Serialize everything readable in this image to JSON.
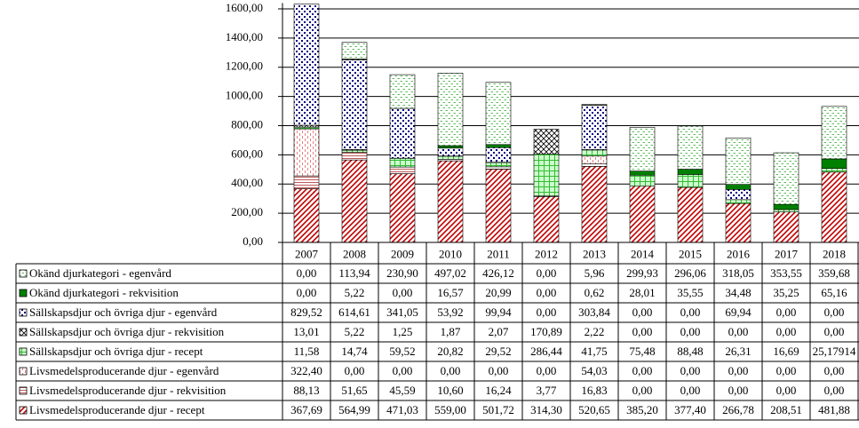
{
  "chart_data": {
    "type": "stacked-bar",
    "categories": [
      "2007",
      "2008",
      "2009",
      "2010",
      "2011",
      "2012",
      "2013",
      "2014",
      "2015",
      "2016",
      "2017",
      "2018"
    ],
    "ylim": [
      0,
      1640
    ],
    "yticks": [
      {
        "value": 0,
        "label": "0,00"
      },
      {
        "value": 200,
        "label": "200,00"
      },
      {
        "value": 400,
        "label": "400,00"
      },
      {
        "value": 600,
        "label": "600,00"
      },
      {
        "value": 800,
        "label": "800,00"
      },
      {
        "value": 1000,
        "label": "1000,00"
      },
      {
        "value": 1200,
        "label": "1200,00"
      },
      {
        "value": 1400,
        "label": "1400,00"
      },
      {
        "value": 1600,
        "label": "1600,00"
      }
    ],
    "grid": true,
    "series": [
      {
        "name": "Okänd djurkategori - egenvård",
        "color": "#33aa33",
        "pattern": "dashes",
        "values": [
          0,
          113.94,
          230.9,
          497.02,
          426.12,
          0,
          5.96,
          299.93,
          296.06,
          318.05,
          353.55,
          359.68
        ],
        "value_labels": [
          "0,00",
          "113,94",
          "230,90",
          "497,02",
          "426,12",
          "0,00",
          "5,96",
          "299,93",
          "296,06",
          "318,05",
          "353,55",
          "359,68"
        ]
      },
      {
        "name": "Okänd djurkategori - rekvisition",
        "color": "#008000",
        "pattern": "solid",
        "values": [
          0,
          5.22,
          0,
          16.57,
          20.99,
          0,
          0.62,
          28.01,
          35.55,
          34.48,
          35.25,
          65.16
        ],
        "value_labels": [
          "0,00",
          "5,22",
          "0,00",
          "16,57",
          "20,99",
          "0,00",
          "0,62",
          "28,01",
          "35,55",
          "34,48",
          "35,25",
          "65,16"
        ]
      },
      {
        "name": "Sällskapsdjur och övriga djur - egenvård",
        "color": "#000080",
        "pattern": "dots",
        "values": [
          829.52,
          614.61,
          341.05,
          53.92,
          99.94,
          0,
          303.84,
          0,
          0,
          69.94,
          0,
          0
        ],
        "value_labels": [
          "829,52",
          "614,61",
          "341,05",
          "53,92",
          "99,94",
          "0,00",
          "303,84",
          "0,00",
          "0,00",
          "69,94",
          "0,00",
          "0,00"
        ]
      },
      {
        "name": "Sällskapsdjur och övriga djur - rekvisition",
        "color": "#000000",
        "pattern": "cross",
        "values": [
          13.01,
          5.22,
          1.25,
          1.87,
          2.07,
          170.89,
          2.22,
          0,
          0,
          0,
          0,
          0
        ],
        "value_labels": [
          "13,01",
          "5,22",
          "1,25",
          "1,87",
          "2,07",
          "170,89",
          "2,22",
          "0,00",
          "0,00",
          "0,00",
          "0,00",
          "0,00"
        ]
      },
      {
        "name": "Sällskapsdjur och övriga djur - recept",
        "color": "#33bb33",
        "pattern": "grid",
        "values": [
          11.58,
          14.74,
          59.52,
          20.82,
          29.52,
          286.44,
          41.75,
          75.48,
          88.48,
          26.31,
          16.69,
          25.17914
        ],
        "value_labels": [
          "11,58",
          "14,74",
          "59,52",
          "20,82",
          "29,52",
          "286,44",
          "41,75",
          "75,48",
          "88,48",
          "26,31",
          "16,69",
          "25,17914"
        ]
      },
      {
        "name": "Livsmedelsproducerande djur - egenvård",
        "color": "#e06060",
        "pattern": "vdash",
        "values": [
          322.4,
          0,
          0,
          0,
          0,
          0,
          54.03,
          0,
          0,
          0,
          0,
          0
        ],
        "value_labels": [
          "322,40",
          "0,00",
          "0,00",
          "0,00",
          "0,00",
          "0,00",
          "54,03",
          "0,00",
          "0,00",
          "0,00",
          "0,00",
          "0,00"
        ]
      },
      {
        "name": "Livsmedelsproducerande djur - rekvisition",
        "color": "#b03030",
        "pattern": "horizontal",
        "values": [
          88.13,
          51.65,
          45.59,
          10.6,
          16.24,
          3.77,
          16.83,
          0,
          0,
          0,
          0,
          0
        ],
        "value_labels": [
          "88,13",
          "51,65",
          "45,59",
          "10,60",
          "16,24",
          "3,77",
          "16,83",
          "0,00",
          "0,00",
          "0,00",
          "0,00",
          "0,00"
        ]
      },
      {
        "name": "Livsmedelsproducerande djur - recept",
        "color": "#c00000",
        "pattern": "diagonal",
        "values": [
          367.69,
          564.99,
          471.03,
          559.0,
          501.72,
          314.3,
          520.65,
          385.2,
          377.4,
          266.78,
          208.51,
          481.88
        ],
        "value_labels": [
          "367,69",
          "564,99",
          "471,03",
          "559,00",
          "501,72",
          "314,30",
          "520,65",
          "385,20",
          "377,40",
          "266,78",
          "208,51",
          "481,88"
        ]
      }
    ]
  }
}
